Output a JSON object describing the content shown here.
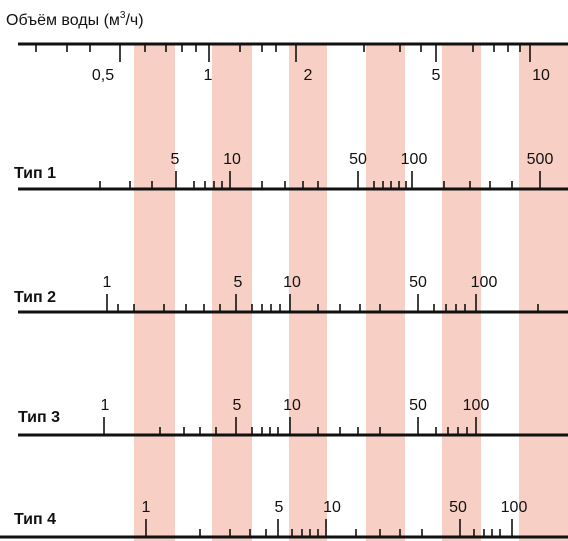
{
  "header": {
    "title_prefix": "Объём воды (м",
    "title_sup": "3",
    "title_suffix": "/ч)"
  },
  "colors": {
    "band": "#f8cfc4",
    "line": "#111111",
    "background": "#ffffff"
  },
  "top_scale": {
    "labels": [
      "0,5",
      "1",
      "2",
      "5",
      "10"
    ]
  },
  "types": [
    {
      "name": "Тип 1",
      "labels": [
        "5",
        "10",
        "50",
        "100",
        "500"
      ]
    },
    {
      "name": "Тип 2",
      "labels": [
        "1",
        "5",
        "10",
        "50",
        "100"
      ]
    },
    {
      "name": "Тип 3",
      "labels": [
        "1",
        "5",
        "10",
        "50",
        "100"
      ]
    },
    {
      "name": "Тип 4",
      "labels": [
        "1",
        "5",
        "10",
        "50",
        "100"
      ]
    }
  ]
}
